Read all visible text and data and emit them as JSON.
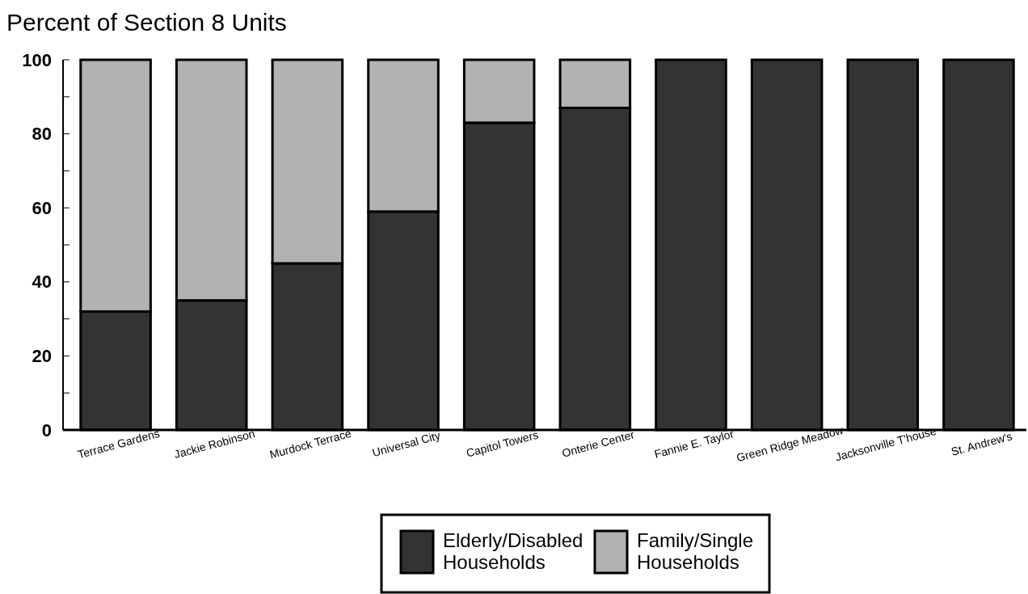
{
  "chart_data": {
    "type": "bar",
    "title": "Percent of Section 8 Units",
    "stacked": true,
    "categories": [
      "Terrace Gardens",
      "Jackie Robinson",
      "Murdock Terrace",
      "Universal City",
      "Capitol Towers",
      "Onterie Center",
      "Fannie E. Taylor",
      "Green Ridge Meadow",
      "Jacksonville T'house",
      "St. Andrew's"
    ],
    "series": [
      {
        "name": "Elderly/Disabled Households",
        "color": "#333333",
        "values": [
          32,
          35,
          45,
          59,
          83,
          87,
          100,
          100,
          100,
          100
        ]
      },
      {
        "name": "Family/Single Households",
        "color": "#b2b2b2",
        "values": [
          68,
          65,
          55,
          41,
          17,
          13,
          0,
          0,
          0,
          0
        ]
      }
    ],
    "ylim": [
      0,
      100
    ],
    "yticks": [
      0,
      {
        "value": 10,
        "label": null
      },
      20,
      {
        "value": 30,
        "label": null
      },
      40,
      {
        "value": 50,
        "label": null
      },
      60,
      {
        "value": 70,
        "label": null
      },
      80,
      {
        "value": 90,
        "label": null
      },
      100
    ],
    "grid": false,
    "legend": "bottom"
  }
}
